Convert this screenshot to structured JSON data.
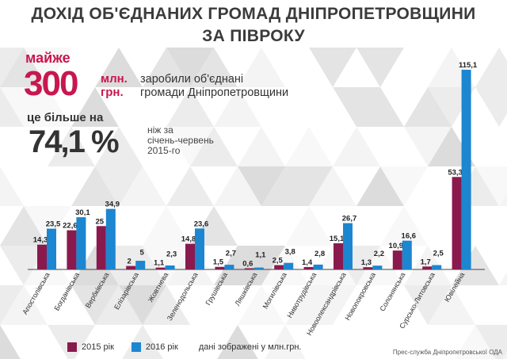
{
  "title": {
    "line1": "ДОХІД ОБ'ЄДНАНИХ ГРОМАД ДНІПРОПЕТРОВЩИНИ",
    "line2": "ЗА ПІВРОКУ"
  },
  "headline": {
    "almost": "майже",
    "amount": "300",
    "unit_line1": "млн.",
    "unit_line2": "грн.",
    "desc_line1": "заробили об'єднані",
    "desc_line2": "громади Дніпропетровщини",
    "more_label": "це більше на",
    "percent": "74,1 %",
    "compare_line1": "ніж за",
    "compare_line2": "січень-червень",
    "compare_line3": "2015-го"
  },
  "legend": {
    "series1": "2015 рік",
    "series2": "2016 рік",
    "note": "дані зображені у млн.грн."
  },
  "source": "Прес-служба Дніпропетровської ОДА",
  "colors": {
    "series1": "#8a1a4e",
    "series2": "#1c86d1",
    "accent": "#c8174f"
  },
  "chart_data": {
    "type": "bar",
    "title": "ДОХІД ОБ'ЄДНАНИХ ГРОМАД ДНІПРОПЕТРОВЩИНИ ЗА ПІВРОКУ",
    "ylabel": "млн.грн.",
    "ylim": [
      0,
      115.1
    ],
    "grid": false,
    "legend_position": "bottom-left",
    "categories": [
      "Апостолівська",
      "Богданівська",
      "Вербківська",
      "Елізарівська",
      "Жовтнева",
      "Зеленодольська",
      "Грушівська",
      "Ляшківська",
      "Могилівська",
      "Нивотрудівська",
      "Новоолександрівська",
      "Новопокровська",
      "Солонянська",
      "Сурсько-Литовська",
      "Ювілейна"
    ],
    "series": [
      {
        "name": "2015 рік",
        "values": [
          14.3,
          22.6,
          25,
          2,
          1.1,
          14.8,
          1.5,
          0.6,
          2.5,
          1.4,
          15.1,
          1.3,
          10.9,
          1.7,
          53.3
        ],
        "labels": [
          "14,3",
          "22,6",
          "25",
          "2",
          "1,1",
          "14,8",
          "1,5",
          "0,6",
          "2,5",
          "1,4",
          "15,1",
          "1,3",
          "10,9",
          "1,7",
          "53,3"
        ]
      },
      {
        "name": "2016 рік",
        "values": [
          23.5,
          30.1,
          34.9,
          5,
          2.3,
          23.6,
          2.7,
          1.1,
          3.8,
          2.8,
          26.7,
          2.2,
          16.6,
          2.5,
          115.1
        ],
        "labels": [
          "23,5",
          "30,1",
          "34,9",
          "5",
          "2,3",
          "23,6",
          "2,7",
          "1,1",
          "3,8",
          "2,8",
          "26,7",
          "2,2",
          "16,6",
          "2,5",
          "115,1"
        ]
      }
    ]
  }
}
